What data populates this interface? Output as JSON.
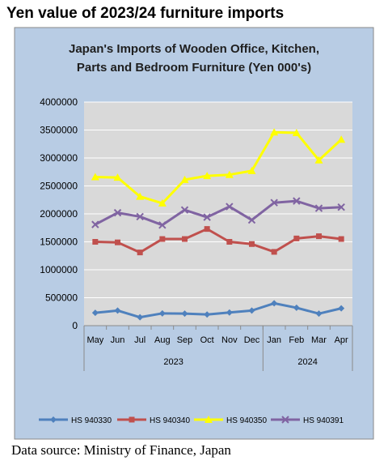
{
  "page": {
    "heading": "Yen value of 2023/24 furniture imports",
    "source": "Data source: Ministry of Finance, Japan"
  },
  "colors": {
    "outer_background": "#b8cce4",
    "plot_background": "#d9d9d9",
    "gridline": "#ffffff"
  },
  "chart_data": {
    "type": "line",
    "title_lines": [
      "Japan's Imports of  Wooden  Office, Kitchen,",
      "Parts and Bedroom Furniture (Yen 000's)"
    ],
    "categories": [
      "May",
      "Jun",
      "Jul",
      "Aug",
      "Sep",
      "Oct",
      "Nov",
      "Dec",
      "Jan",
      "Feb",
      "Mar",
      "Apr"
    ],
    "year_groups": [
      {
        "label": "2023",
        "months": 8
      },
      {
        "label": "2024",
        "months": 4
      }
    ],
    "ylim": [
      0,
      4000000
    ],
    "yticks": [
      0,
      500000,
      1000000,
      1500000,
      2000000,
      2500000,
      3000000,
      3500000,
      4000000
    ],
    "ytick_labels": [
      "0",
      "500000",
      "1000000",
      "1500000",
      "2000000",
      "2500000",
      "3000000",
      "3500000",
      "4000000"
    ],
    "grid": true,
    "legend_position": "bottom",
    "series": [
      {
        "name": "HS 940330",
        "color": "#4f81bd",
        "marker": "diamond",
        "values": [
          230000,
          270000,
          150000,
          220000,
          215000,
          200000,
          235000,
          270000,
          400000,
          320000,
          215000,
          310000
        ]
      },
      {
        "name": "HS 940340",
        "color": "#c0504d",
        "marker": "square",
        "values": [
          1500000,
          1490000,
          1310000,
          1550000,
          1550000,
          1730000,
          1500000,
          1460000,
          1320000,
          1560000,
          1600000,
          1550000
        ]
      },
      {
        "name": "HS 940350",
        "color": "#ffff00",
        "marker": "triangle",
        "values": [
          2660000,
          2650000,
          2310000,
          2190000,
          2610000,
          2680000,
          2700000,
          2770000,
          3460000,
          3450000,
          2960000,
          3330000
        ]
      },
      {
        "name": "HS 940391",
        "color": "#8064a2",
        "marker": "x",
        "values": [
          1810000,
          2020000,
          1950000,
          1800000,
          2070000,
          1940000,
          2130000,
          1890000,
          2200000,
          2230000,
          2100000,
          2120000
        ]
      }
    ]
  }
}
